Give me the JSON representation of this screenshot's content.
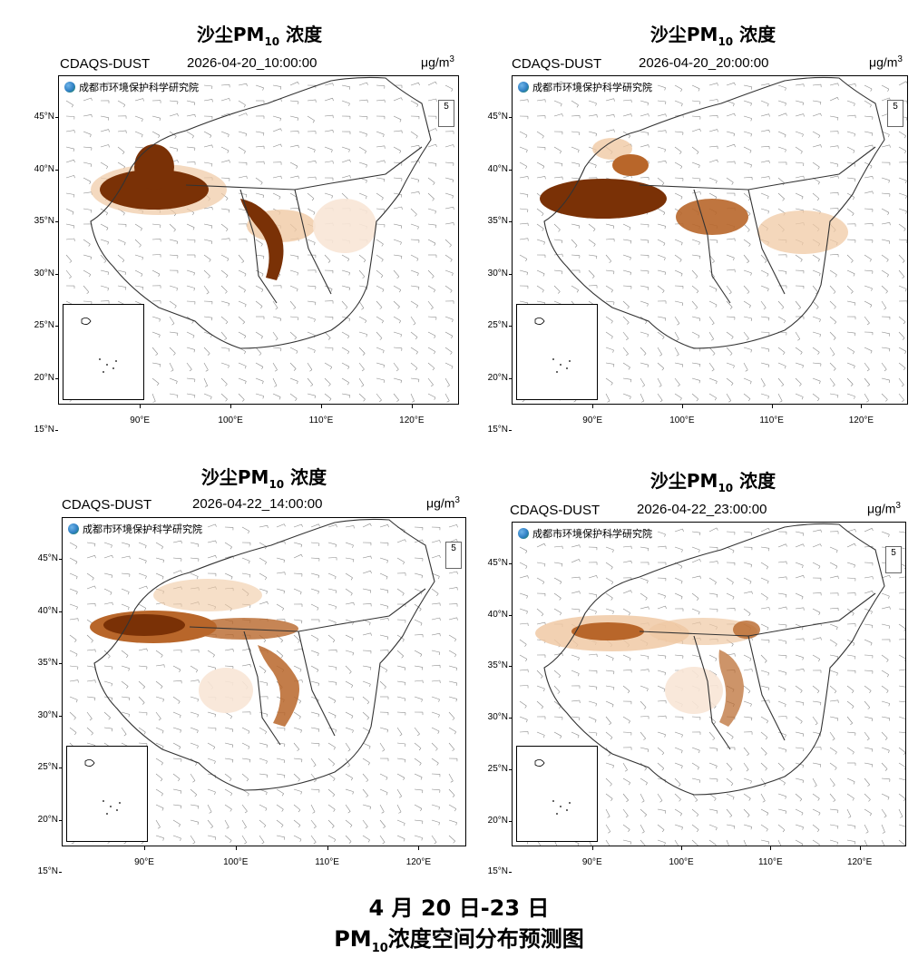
{
  "panels": [
    {
      "title_pre": "沙尘PM",
      "title_sub": "10",
      "title_post": " 浓度",
      "model": "CDAQS-DUST",
      "timestamp": "2026-04-20_10:00:00",
      "unit_base": "μg/m",
      "unit_sup": "3",
      "institute": "成都市环境保护科学研究院",
      "ref_vector": "5"
    },
    {
      "title_pre": "沙尘PM",
      "title_sub": "10",
      "title_post": " 浓度",
      "model": "CDAQS-DUST",
      "timestamp": "2026-04-20_20:00:00",
      "unit_base": "μg/m",
      "unit_sup": "3",
      "institute": "成都市环境保护科学研究院",
      "ref_vector": "5"
    },
    {
      "title_pre": "沙尘PM",
      "title_sub": "10",
      "title_post": " 浓度",
      "model": "CDAQS-DUST",
      "timestamp": "2026-04-22_14:00:00",
      "unit_base": "μg/m",
      "unit_sup": "3",
      "institute": "成都市环境保护科学研究院",
      "ref_vector": "5"
    },
    {
      "title_pre": "沙尘PM",
      "title_sub": "10",
      "title_post": " 浓度",
      "model": "CDAQS-DUST",
      "timestamp": "2026-04-22_23:00:00",
      "unit_base": "μg/m",
      "unit_sup": "3",
      "institute": "成都市环境保护科学研究院",
      "ref_vector": "5"
    }
  ],
  "lat_labels": [
    "45°N",
    "40°N",
    "35°N",
    "30°N",
    "25°N",
    "20°N",
    "15°N"
  ],
  "lon_labels": [
    "90°E",
    "100°E",
    "110°E",
    "120°E"
  ],
  "caption": {
    "line1": "4 月 20 日-23 日",
    "line2_pre": "PM",
    "line2_sub": "10",
    "line2_post": "浓度空间分布预测图"
  },
  "colors": {
    "dust_heavy": "#7a3106",
    "dust_medium": "#b8662a",
    "dust_light": "#f0c9a4",
    "dust_faint": "#f8e6d6",
    "border": "#333333",
    "wind": "#8a8a8a"
  }
}
